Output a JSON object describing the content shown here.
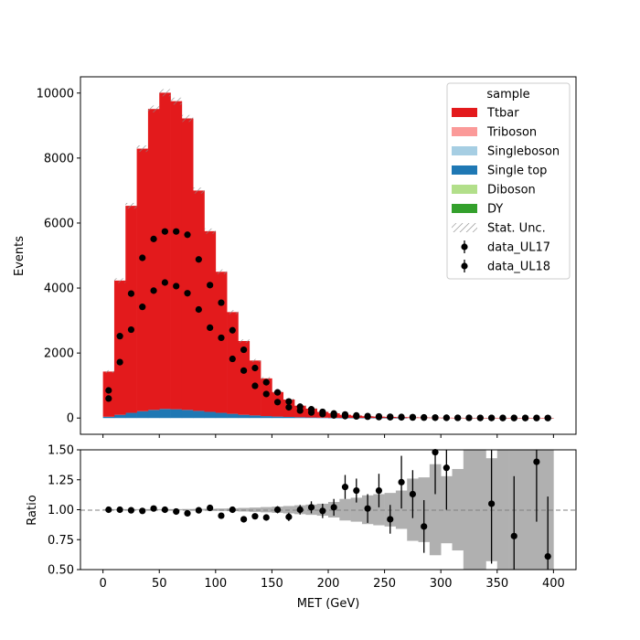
{
  "chart_data": [
    {
      "type": "bar",
      "role": "stacked-histogram",
      "ylabel": "Events",
      "ylim": [
        -500,
        10500
      ],
      "xlim": [
        -20,
        420
      ],
      "yticks": [
        0,
        2000,
        4000,
        6000,
        8000,
        10000
      ],
      "bin_edges": [
        0,
        10,
        20,
        30,
        40,
        50,
        60,
        70,
        80,
        90,
        100,
        110,
        120,
        130,
        140,
        150,
        160,
        170,
        180,
        190,
        200,
        210,
        220,
        230,
        240,
        250,
        260,
        270,
        280,
        290,
        300,
        310,
        320,
        330,
        340,
        350,
        360,
        370,
        380,
        390,
        400
      ],
      "series": [
        {
          "name": "DY",
          "color": "#33a02c",
          "values": [
            0,
            0,
            0,
            0,
            0,
            0,
            0,
            0,
            0,
            0,
            0,
            0,
            0,
            0,
            0,
            0,
            0,
            0,
            0,
            0,
            0,
            0,
            0,
            0,
            0,
            0,
            0,
            0,
            0,
            0,
            0,
            0,
            0,
            0,
            0,
            0,
            0,
            0,
            0,
            0
          ]
        },
        {
          "name": "Diboson",
          "color": "#b2df8a",
          "values": [
            0,
            0,
            0,
            0,
            0,
            0,
            0,
            0,
            0,
            0,
            0,
            0,
            0,
            0,
            0,
            0,
            0,
            0,
            0,
            0,
            0,
            0,
            0,
            0,
            0,
            0,
            0,
            0,
            0,
            0,
            0,
            0,
            0,
            0,
            0,
            0,
            0,
            0,
            0,
            0
          ]
        },
        {
          "name": "Single top",
          "color": "#1f78b4",
          "values": [
            40,
            100,
            160,
            210,
            250,
            280,
            270,
            250,
            220,
            190,
            160,
            130,
            100,
            80,
            60,
            45,
            35,
            25,
            18,
            12,
            8,
            6,
            4,
            3,
            2,
            1,
            1,
            0,
            0,
            0,
            0,
            0,
            0,
            0,
            0,
            0,
            0,
            0,
            0,
            0
          ]
        },
        {
          "name": "Singleboson",
          "color": "#a6cee3",
          "values": [
            0,
            0,
            0,
            0,
            0,
            0,
            0,
            0,
            0,
            0,
            0,
            0,
            0,
            0,
            0,
            0,
            0,
            0,
            0,
            0,
            0,
            0,
            0,
            0,
            0,
            0,
            0,
            0,
            0,
            0,
            0,
            0,
            0,
            0,
            0,
            0,
            0,
            0,
            0,
            0
          ]
        },
        {
          "name": "Triboson",
          "color": "#fb9a99",
          "values": [
            0,
            0,
            0,
            0,
            0,
            0,
            0,
            0,
            0,
            0,
            0,
            0,
            0,
            0,
            0,
            0,
            0,
            0,
            0,
            0,
            0,
            0,
            0,
            0,
            0,
            0,
            0,
            0,
            0,
            0,
            0,
            0,
            0,
            0,
            0,
            0,
            0,
            0,
            0,
            0
          ]
        },
        {
          "name": "Ttbar",
          "color": "#e31a1c",
          "values": [
            1390,
            4130,
            6370,
            8080,
            9260,
            9730,
            9480,
            8970,
            6780,
            5560,
            4340,
            3130,
            2270,
            1690,
            1160,
            755,
            535,
            355,
            272,
            178,
            137,
            94,
            71,
            52,
            42,
            34,
            27,
            22,
            17,
            13,
            10,
            8,
            6,
            5,
            4,
            3,
            2,
            2,
            2,
            1
          ]
        }
      ],
      "data_series": [
        {
          "name": "data_UL17",
          "x": [
            5,
            15,
            25,
            35,
            45,
            55,
            65,
            75,
            85,
            95,
            105,
            115,
            125,
            135,
            145,
            155,
            165,
            175,
            185,
            195,
            205,
            215,
            225,
            235,
            245,
            255,
            265,
            275,
            285,
            295,
            305,
            315,
            325,
            335,
            345,
            355,
            365,
            375,
            385,
            395
          ],
          "y": [
            850,
            2520,
            3830,
            4930,
            5510,
            5740,
            5740,
            5640,
            4880,
            4090,
            3550,
            2700,
            2100,
            1540,
            1100,
            790,
            510,
            350,
            270,
            190,
            140,
            110,
            80,
            60,
            50,
            40,
            35,
            28,
            20,
            15,
            10,
            8,
            6,
            5,
            4,
            3,
            2,
            2,
            2,
            1
          ]
        },
        {
          "name": "data_UL18",
          "x": [
            5,
            15,
            25,
            35,
            45,
            55,
            65,
            75,
            85,
            95,
            105,
            115,
            125,
            135,
            145,
            155,
            165,
            175,
            185,
            195,
            205,
            215,
            225,
            235,
            245,
            255,
            265,
            275,
            285,
            295,
            305,
            315,
            325,
            335,
            345,
            355,
            365,
            375,
            385,
            395
          ],
          "y": [
            600,
            1720,
            2720,
            3420,
            3920,
            4170,
            4060,
            3840,
            3340,
            2780,
            2470,
            1820,
            1460,
            990,
            740,
            490,
            330,
            230,
            170,
            120,
            80,
            60,
            50,
            40,
            30,
            25,
            20,
            15,
            12,
            10,
            7,
            5,
            4,
            3,
            3,
            2,
            2,
            1,
            1,
            1
          ]
        }
      ],
      "legend_title": "sample",
      "legend_entries": [
        "Ttbar",
        "Triboson",
        "Singleboson",
        "Single top",
        "Diboson",
        "DY",
        "Stat. Unc.",
        "data_UL17",
        "data_UL18"
      ],
      "legend_position": "top-right"
    },
    {
      "type": "scatter",
      "role": "ratio",
      "xlabel": "MET (GeV)",
      "ylabel": "Ratio",
      "ylim": [
        0.5,
        1.5
      ],
      "yticks": [
        "0.50",
        "0.75",
        "1.00",
        "1.25",
        "1.50"
      ],
      "xticks": [
        0,
        50,
        100,
        150,
        200,
        250,
        300,
        350,
        400
      ],
      "reference_line": 1.0,
      "unc_band": [
        0.005,
        0.005,
        0.005,
        0.005,
        0.005,
        0.005,
        0.005,
        0.006,
        0.007,
        0.008,
        0.01,
        0.012,
        0.015,
        0.018,
        0.022,
        0.026,
        0.031,
        0.037,
        0.043,
        0.05,
        0.065,
        0.09,
        0.1,
        0.12,
        0.13,
        0.14,
        0.16,
        0.26,
        0.27,
        0.38,
        0.28,
        0.34,
        0.6,
        0.6,
        0.43,
        0.6,
        0.6,
        0.6,
        0.6,
        0.6
      ],
      "points": [
        {
          "x": 5,
          "y": 1.0,
          "err": 0.012
        },
        {
          "x": 15,
          "y": 1.0,
          "err": 0.008
        },
        {
          "x": 25,
          "y": 0.995,
          "err": 0.007
        },
        {
          "x": 35,
          "y": 0.99,
          "err": 0.007
        },
        {
          "x": 45,
          "y": 1.01,
          "err": 0.006
        },
        {
          "x": 55,
          "y": 1.0,
          "err": 0.006
        },
        {
          "x": 65,
          "y": 0.985,
          "err": 0.006
        },
        {
          "x": 75,
          "y": 0.97,
          "err": 0.007
        },
        {
          "x": 85,
          "y": 0.995,
          "err": 0.008
        },
        {
          "x": 95,
          "y": 1.015,
          "err": 0.009
        },
        {
          "x": 105,
          "y": 0.95,
          "err": 0.012
        },
        {
          "x": 115,
          "y": 1.0,
          "err": 0.014
        },
        {
          "x": 125,
          "y": 0.92,
          "err": 0.017
        },
        {
          "x": 135,
          "y": 0.945,
          "err": 0.02
        },
        {
          "x": 145,
          "y": 0.935,
          "err": 0.025
        },
        {
          "x": 155,
          "y": 1.0,
          "err": 0.03
        },
        {
          "x": 165,
          "y": 0.94,
          "err": 0.035
        },
        {
          "x": 175,
          "y": 1.0,
          "err": 0.04
        },
        {
          "x": 185,
          "y": 1.02,
          "err": 0.05
        },
        {
          "x": 195,
          "y": 0.99,
          "err": 0.06
        },
        {
          "x": 205,
          "y": 1.02,
          "err": 0.07
        },
        {
          "x": 215,
          "y": 1.19,
          "err": 0.1
        },
        {
          "x": 225,
          "y": 1.16,
          "err": 0.1
        },
        {
          "x": 235,
          "y": 1.01,
          "err": 0.12
        },
        {
          "x": 245,
          "y": 1.16,
          "err": 0.14
        },
        {
          "x": 255,
          "y": 0.92,
          "err": 0.12
        },
        {
          "x": 265,
          "y": 1.23,
          "err": 0.22
        },
        {
          "x": 275,
          "y": 1.13,
          "err": 0.2
        },
        {
          "x": 285,
          "y": 0.86,
          "err": 0.22
        },
        {
          "x": 295,
          "y": 1.48,
          "err": 0.35
        },
        {
          "x": 305,
          "y": 1.35,
          "err": 0.35
        },
        {
          "x": 345,
          "y": 1.05,
          "err": 0.5
        },
        {
          "x": 365,
          "y": 0.78,
          "err": 0.5
        },
        {
          "x": 385,
          "y": 1.4,
          "err": 0.5
        },
        {
          "x": 395,
          "y": 0.61,
          "err": 0.5
        }
      ]
    }
  ]
}
